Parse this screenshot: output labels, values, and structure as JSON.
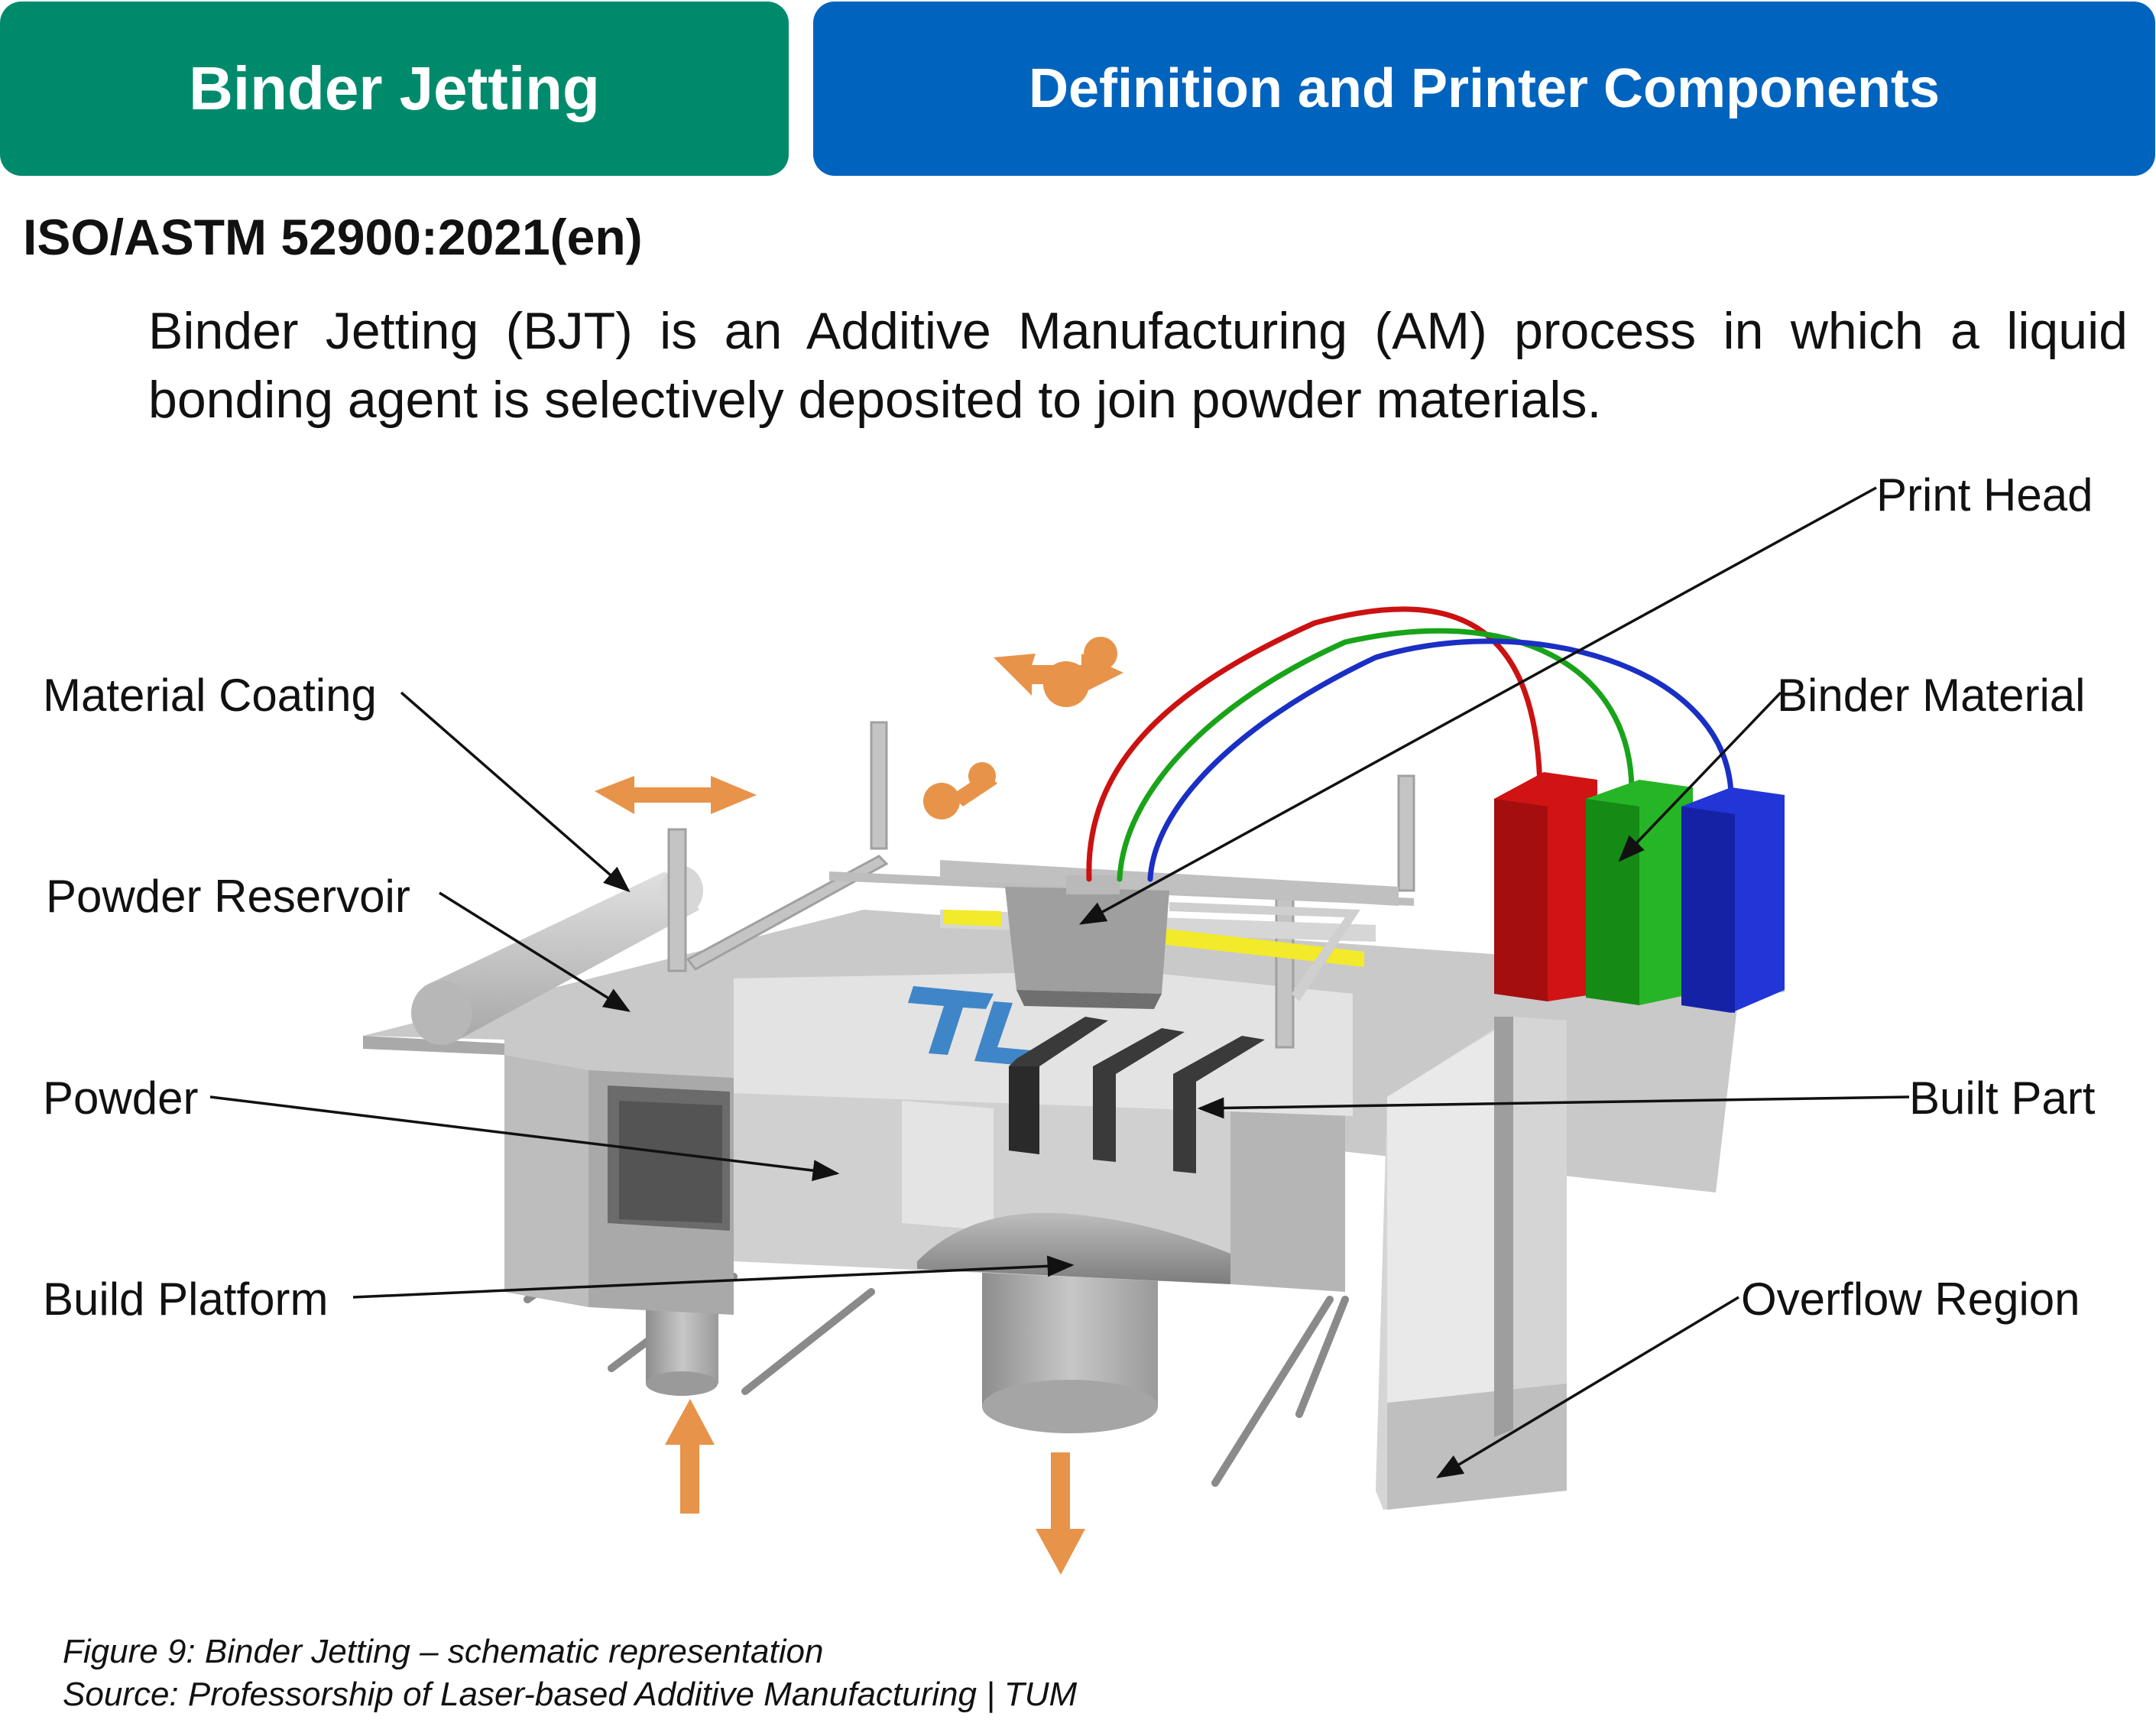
{
  "header": {
    "title": "Binder Jetting",
    "subtitle": "Definition and Printer Components"
  },
  "standard": "ISO/ASTM 52900:2021(en)",
  "definition": "Binder Jetting (BJT) is an Additive Manufacturing (AM) process in which a liquid bonding agent is selectively deposited to join powder materials.",
  "diagram": {
    "labels": {
      "print_head": "Print Head",
      "material_coating": "Material Coating",
      "binder_material": "Binder Material",
      "powder_reservoir": "Powder Reservoir",
      "powder": "Powder",
      "built_part": "Built Part",
      "build_platform": "Build Platform",
      "overflow_region": "Overflow Region"
    },
    "colors": {
      "binder_red": "#cc1111",
      "binder_green": "#19a319",
      "binder_blue": "#1a2fc4",
      "motion_arrow": "#e8934a",
      "logo_blue": "#3f86c9",
      "built_part": "#3a3a3a",
      "yellow_rail": "#f2ea2a"
    }
  },
  "caption": {
    "figure": "Figure 9: Binder Jetting – schematic representation",
    "source": "Source: Professorship of Laser-based Additive Manufacturing | TUM"
  }
}
